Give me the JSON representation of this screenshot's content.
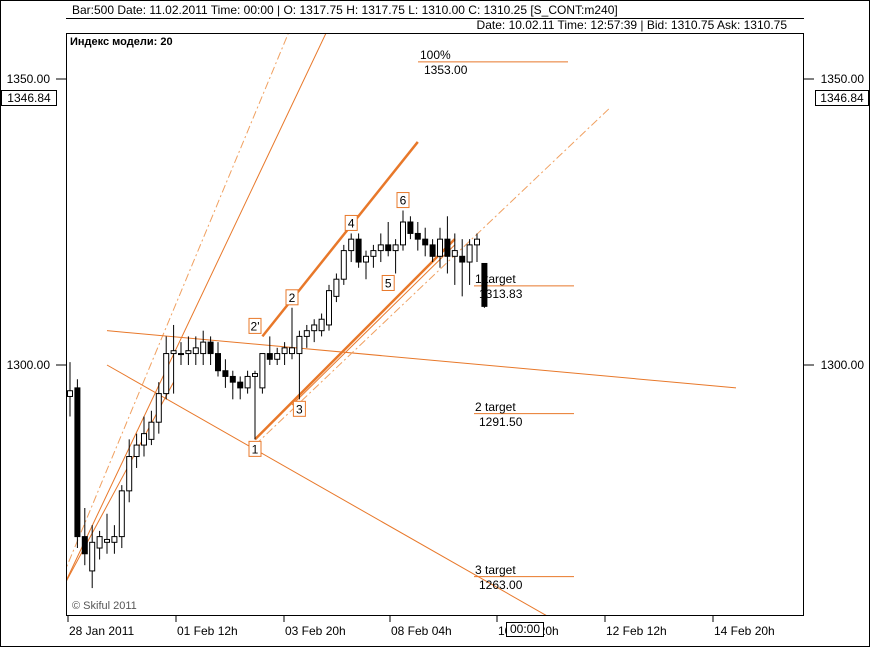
{
  "header": {
    "line1": "Bar:500  Date: 11.02.2011  Time: 00:00  |  O:   1317.75  H:   1317.75  L:   1310.00  C:   1310.25   [S_CONT:m240]",
    "line2": "Date: 10.02.11  Time: 12:57:39  |  Bid:   1310.75  Ask:   1310.75"
  },
  "model_index": "Индекс модели: 20",
  "copyright": "© Skiful 2011",
  "price_tags": {
    "left": "1346.84",
    "right": "1346.84",
    "time_marker": "00:00"
  },
  "colors": {
    "accent": "#e8782a",
    "dashdot": "#f0a060",
    "candle_up": "#ffffff",
    "candle_down": "#000000",
    "axis": "#000000"
  },
  "chart_data": {
    "type": "candlestick",
    "timeframe": "m240",
    "ylim": [
      1258,
      1363
    ],
    "yticks": [
      1300.0,
      1350.0
    ],
    "xticks": [
      "28 Jan 2011",
      "01 Feb 12h",
      "03 Feb 20h",
      "08 Feb 04h",
      "10 Feb 20h",
      "12 Feb 12h",
      "14 Feb 20h"
    ],
    "candles": [
      {
        "o": 1294.5,
        "h": 1300.5,
        "l": 1291,
        "c": 1295.5
      },
      {
        "o": 1296,
        "h": 1297.5,
        "l": 1268,
        "c": 1270
      },
      {
        "o": 1270,
        "h": 1275,
        "l": 1265,
        "c": 1267
      },
      {
        "o": 1264,
        "h": 1272,
        "l": 1261,
        "c": 1269
      },
      {
        "o": 1268,
        "h": 1271,
        "l": 1266,
        "c": 1270
      },
      {
        "o": 1269,
        "h": 1274,
        "l": 1267,
        "c": 1269.5
      },
      {
        "o": 1269,
        "h": 1272,
        "l": 1267,
        "c": 1270
      },
      {
        "o": 1270,
        "h": 1279,
        "l": 1268,
        "c": 1278
      },
      {
        "o": 1278,
        "h": 1287,
        "l": 1276,
        "c": 1284
      },
      {
        "o": 1284,
        "h": 1288,
        "l": 1282,
        "c": 1286
      },
      {
        "o": 1286,
        "h": 1291,
        "l": 1284,
        "c": 1288
      },
      {
        "o": 1287,
        "h": 1292,
        "l": 1286,
        "c": 1290
      },
      {
        "o": 1290,
        "h": 1297,
        "l": 1288,
        "c": 1295
      },
      {
        "o": 1295,
        "h": 1305,
        "l": 1294,
        "c": 1302
      },
      {
        "o": 1302,
        "h": 1307,
        "l": 1295,
        "c": 1302.5
      },
      {
        "o": 1302,
        "h": 1304,
        "l": 1300,
        "c": 1302
      },
      {
        "o": 1302,
        "h": 1305,
        "l": 1300,
        "c": 1302.5
      },
      {
        "o": 1302,
        "h": 1305,
        "l": 1300,
        "c": 1303
      },
      {
        "o": 1302,
        "h": 1306,
        "l": 1300,
        "c": 1304
      },
      {
        "o": 1304,
        "h": 1305,
        "l": 1300,
        "c": 1302
      },
      {
        "o": 1302,
        "h": 1304,
        "l": 1298,
        "c": 1299
      },
      {
        "o": 1299,
        "h": 1301,
        "l": 1296,
        "c": 1298
      },
      {
        "o": 1298,
        "h": 1299,
        "l": 1294,
        "c": 1297
      },
      {
        "o": 1297,
        "h": 1298,
        "l": 1294,
        "c": 1296
      },
      {
        "o": 1296,
        "h": 1299,
        "l": 1295,
        "c": 1298
      },
      {
        "o": 1298,
        "h": 1299,
        "l": 1287,
        "c": 1298.5
      },
      {
        "o": 1296,
        "h": 1302,
        "l": 1295,
        "c": 1302
      },
      {
        "o": 1302,
        "h": 1305,
        "l": 1300,
        "c": 1301
      },
      {
        "o": 1301,
        "h": 1303,
        "l": 1300,
        "c": 1302
      },
      {
        "o": 1302,
        "h": 1304,
        "l": 1300,
        "c": 1303
      },
      {
        "o": 1302,
        "h": 1310,
        "l": 1301,
        "c": 1303
      },
      {
        "o": 1302,
        "h": 1306,
        "l": 1294,
        "c": 1305
      },
      {
        "o": 1305,
        "h": 1307,
        "l": 1303,
        "c": 1306
      },
      {
        "o": 1306,
        "h": 1308,
        "l": 1304,
        "c": 1307
      },
      {
        "o": 1306,
        "h": 1309,
        "l": 1305,
        "c": 1308
      },
      {
        "o": 1307,
        "h": 1314,
        "l": 1306,
        "c": 1313
      },
      {
        "o": 1312,
        "h": 1316,
        "l": 1311,
        "c": 1315
      },
      {
        "o": 1315,
        "h": 1321,
        "l": 1314,
        "c": 1320
      },
      {
        "o": 1320,
        "h": 1323,
        "l": 1318,
        "c": 1322
      },
      {
        "o": 1322,
        "h": 1323,
        "l": 1317,
        "c": 1318
      },
      {
        "o": 1318,
        "h": 1320,
        "l": 1315,
        "c": 1319
      },
      {
        "o": 1319,
        "h": 1321,
        "l": 1317,
        "c": 1320
      },
      {
        "o": 1320,
        "h": 1323,
        "l": 1318,
        "c": 1321
      },
      {
        "o": 1321,
        "h": 1325,
        "l": 1319,
        "c": 1320
      },
      {
        "o": 1320,
        "h": 1322,
        "l": 1316,
        "c": 1321
      },
      {
        "o": 1321,
        "h": 1327,
        "l": 1320,
        "c": 1325
      },
      {
        "o": 1325,
        "h": 1326,
        "l": 1322,
        "c": 1323
      },
      {
        "o": 1323,
        "h": 1325,
        "l": 1320,
        "c": 1322
      },
      {
        "o": 1322,
        "h": 1324,
        "l": 1319,
        "c": 1321
      },
      {
        "o": 1321,
        "h": 1322,
        "l": 1318,
        "c": 1319
      },
      {
        "o": 1319,
        "h": 1324,
        "l": 1317,
        "c": 1322
      },
      {
        "o": 1322,
        "h": 1326,
        "l": 1316,
        "c": 1319
      },
      {
        "o": 1319,
        "h": 1323,
        "l": 1314,
        "c": 1320
      },
      {
        "o": 1319,
        "h": 1322,
        "l": 1312,
        "c": 1318
      },
      {
        "o": 1318,
        "h": 1322,
        "l": 1314,
        "c": 1321
      },
      {
        "o": 1321,
        "h": 1323,
        "l": 1318,
        "c": 1322
      },
      {
        "o": 1317.75,
        "h": 1317.75,
        "l": 1310,
        "c": 1310.25
      }
    ],
    "waves": [
      {
        "label": "1",
        "candle": 25,
        "price": 1287,
        "pos": "below"
      },
      {
        "label": "2'",
        "candle": 25,
        "price": 1305,
        "pos": "above"
      },
      {
        "label": "2",
        "candle": 30,
        "price": 1310,
        "pos": "above"
      },
      {
        "label": "3",
        "candle": 31,
        "price": 1294,
        "pos": "below"
      },
      {
        "label": "4",
        "candle": 38,
        "price": 1323,
        "pos": "above"
      },
      {
        "label": "5",
        "candle": 43,
        "price": 1316,
        "pos": "below"
      },
      {
        "label": "6",
        "candle": 45,
        "price": 1327,
        "pos": "above"
      }
    ],
    "targets": [
      {
        "label": "100%",
        "value": "1353.00",
        "price": 1353.0
      },
      {
        "label": "1 target",
        "value": "1313.83",
        "price": 1313.83
      },
      {
        "label": "2 target",
        "value": "1291.50",
        "price": 1291.5
      },
      {
        "label": "3 target",
        "value": "1263.00",
        "price": 1263.0
      }
    ],
    "trendlines": [
      {
        "from": [
          -1,
          1261
        ],
        "to": [
          14,
          1297
        ],
        "style": "solid"
      },
      {
        "from": [
          -1,
          1261
        ],
        "to": [
          50,
          1400
        ],
        "style": "solid"
      },
      {
        "from": [
          -1,
          1263
        ],
        "to": [
          43,
          1400
        ],
        "style": "dashdot"
      },
      {
        "from": [
          5,
          1306
        ],
        "to": [
          90,
          1296
        ],
        "style": "solid"
      },
      {
        "from": [
          5,
          1300
        ],
        "to": [
          66,
          1255
        ],
        "style": "solid"
      },
      {
        "from": [
          25,
          1287
        ],
        "to": [
          52,
          1322
        ],
        "style": "solid_bold"
      },
      {
        "from": [
          26,
          1305
        ],
        "to": [
          47,
          1339
        ],
        "style": "solid_bold"
      },
      {
        "from": [
          25,
          1286
        ],
        "to": [
          73,
          1345
        ],
        "style": "dashdot"
      },
      {
        "from": [
          30,
          1293
        ],
        "to": [
          52,
          1321
        ],
        "style": "solid"
      }
    ]
  }
}
